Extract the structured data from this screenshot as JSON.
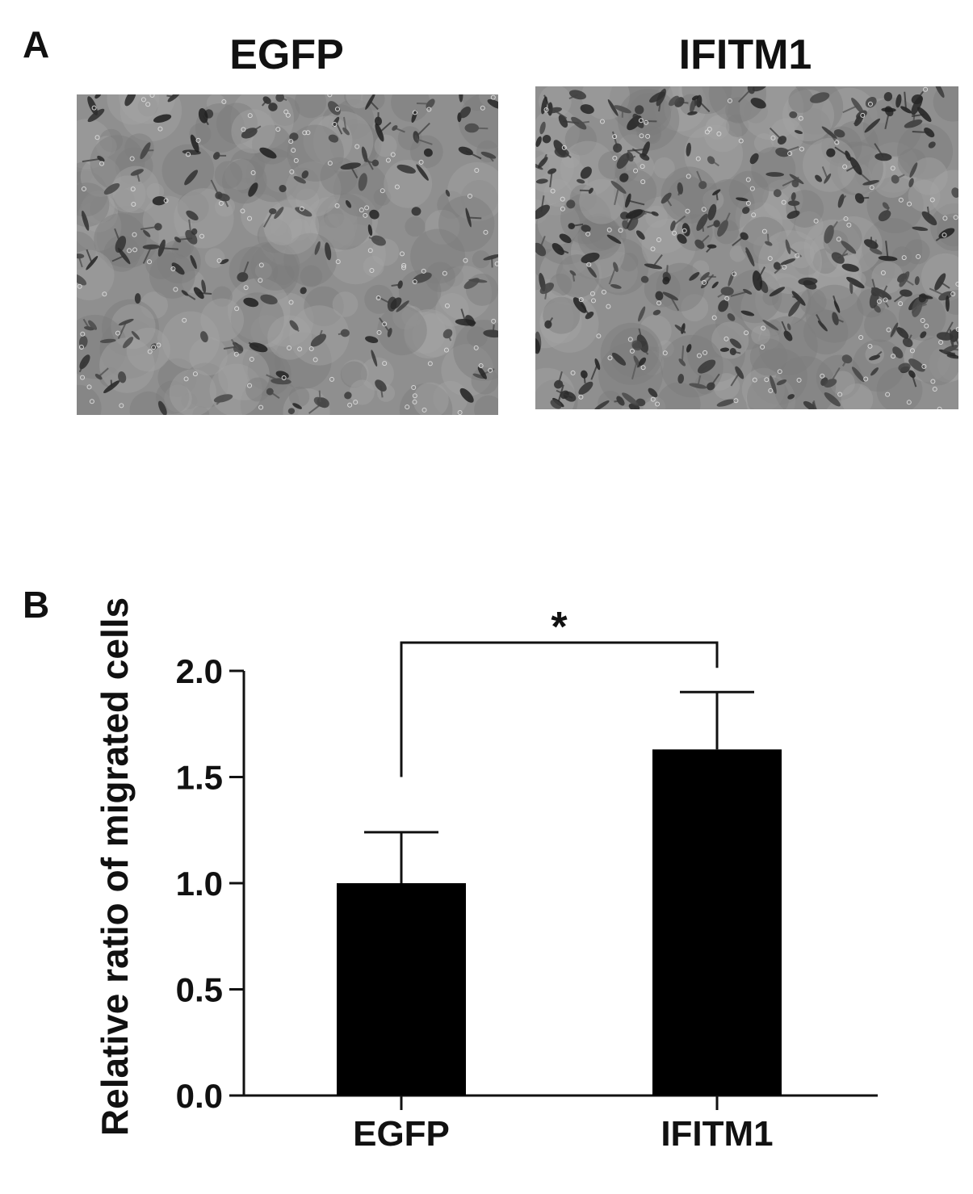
{
  "panel_a": {
    "letter": "A",
    "images": [
      {
        "label": "EGFP",
        "cell_count": 140,
        "seed": 7
      },
      {
        "label": "IFITM1",
        "cell_count": 260,
        "seed": 19
      }
    ]
  },
  "panel_b": {
    "letter": "B"
  },
  "chart_data": {
    "type": "bar",
    "categories": [
      "EGFP",
      "IFITM1"
    ],
    "values": [
      1.0,
      1.63
    ],
    "error_bars_upper": [
      0.24,
      0.27
    ],
    "ylabel": "Relative ratio of migrated cells",
    "xlabel": "",
    "ylim": [
      0.0,
      2.0
    ],
    "yticks": [
      "0.0",
      "0.5",
      "1.0",
      "1.5",
      "2.0"
    ],
    "significance": {
      "between": [
        "EGFP",
        "IFITM1"
      ],
      "marker": "*"
    },
    "bar_color": "#000000",
    "grid": false
  }
}
